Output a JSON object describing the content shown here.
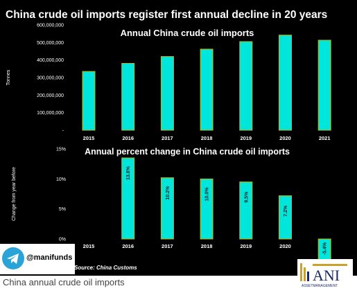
{
  "title": "China crude oil imports register first annual decline in 20 years",
  "caption": "China annual crude oil imports",
  "source": "Source: China Customs",
  "telegram_handle": "@manifunds",
  "logo": {
    "text": "ANI",
    "subtext": "ASSETMANAGEMENT"
  },
  "colors": {
    "bar": "#00e5dc",
    "bar_edge": "#c8b400",
    "background": "#000000",
    "text": "#ffffff"
  },
  "chart_data": [
    {
      "type": "bar",
      "title": "Annual China crude oil imports",
      "ylabel": "Tonnes",
      "categories": [
        "2015",
        "2016",
        "2017",
        "2018",
        "2019",
        "2020",
        "2021"
      ],
      "values": [
        335000000,
        381000000,
        420000000,
        462000000,
        505000000,
        542000000,
        513000000
      ],
      "yticks": [
        0,
        100000000,
        200000000,
        300000000,
        400000000,
        500000000,
        600000000
      ],
      "ytick_labels": [
        "-",
        "100,000,000",
        "200,000,000",
        "300,000,000",
        "400,000,000",
        "500,000,000",
        "600,000,000"
      ],
      "ylim": [
        0,
        600000000
      ],
      "grid": false
    },
    {
      "type": "bar",
      "title": "Annual percent change in China crude oil imports",
      "ylabel": "Change from year before",
      "categories": [
        "2015",
        "2016",
        "2017",
        "2018",
        "2019",
        "2020",
        "2021"
      ],
      "values": [
        null,
        13.8,
        10.2,
        10.0,
        9.5,
        7.2,
        -5.4
      ],
      "data_labels": [
        "",
        "13.8%",
        "10.2%",
        "10.0%",
        "9.5%",
        "7.2%",
        "-5.4%"
      ],
      "yticks": [
        0,
        5,
        10,
        15
      ],
      "ytick_labels": [
        "0%",
        "5%",
        "10%",
        "15%"
      ],
      "ylim": [
        0,
        15
      ],
      "grid": false
    }
  ]
}
